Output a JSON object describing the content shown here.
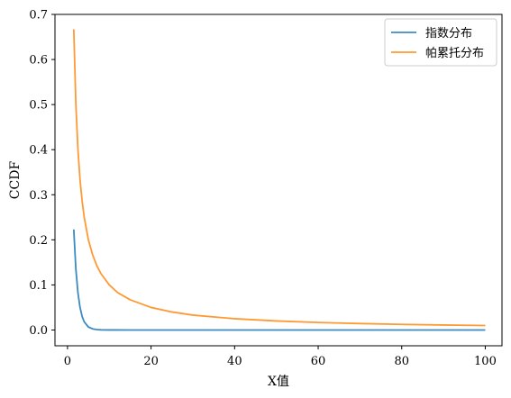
{
  "chart_data": {
    "type": "line",
    "title": "",
    "xlabel": "X值",
    "ylabel": "CCDF",
    "xlim": [
      -3,
      104
    ],
    "ylim": [
      -0.035,
      0.7
    ],
    "xticks": [
      0,
      20,
      40,
      60,
      80,
      100
    ],
    "yticks": [
      0.0,
      0.1,
      0.2,
      0.3,
      0.4,
      0.5,
      0.6,
      0.7
    ],
    "xtick_labels": [
      "0",
      "20",
      "40",
      "60",
      "80",
      "100"
    ],
    "ytick_labels": [
      "0.0",
      "0.1",
      "0.2",
      "0.3",
      "0.4",
      "0.5",
      "0.6",
      "0.7"
    ],
    "grid": false,
    "legend_position": "top-right",
    "series": [
      {
        "name": "指数分布",
        "color": "#3b8bc2",
        "x": [
          1.5,
          2,
          2.5,
          3,
          3.5,
          4,
          5,
          6,
          7,
          8,
          10,
          15,
          20,
          30,
          40,
          50,
          60,
          70,
          80,
          90,
          100
        ],
        "y": [
          0.223,
          0.135,
          0.082,
          0.05,
          0.03,
          0.018,
          0.0067,
          0.0025,
          0.0009,
          0.0003,
          5e-05,
          0.0,
          0.0,
          0.0,
          0.0,
          0.0,
          0.0,
          0.0,
          0.0,
          0.0,
          0.0
        ]
      },
      {
        "name": "帕累托分布",
        "color": "#ff9933",
        "x": [
          1.5,
          2,
          2.5,
          3,
          3.5,
          4,
          5,
          6,
          7,
          8,
          10,
          12,
          15,
          20,
          25,
          30,
          40,
          50,
          60,
          70,
          80,
          90,
          100
        ],
        "y": [
          0.667,
          0.5,
          0.4,
          0.333,
          0.286,
          0.25,
          0.2,
          0.167,
          0.143,
          0.125,
          0.1,
          0.083,
          0.067,
          0.05,
          0.04,
          0.033,
          0.025,
          0.02,
          0.0167,
          0.0143,
          0.0125,
          0.0111,
          0.01
        ]
      }
    ]
  }
}
